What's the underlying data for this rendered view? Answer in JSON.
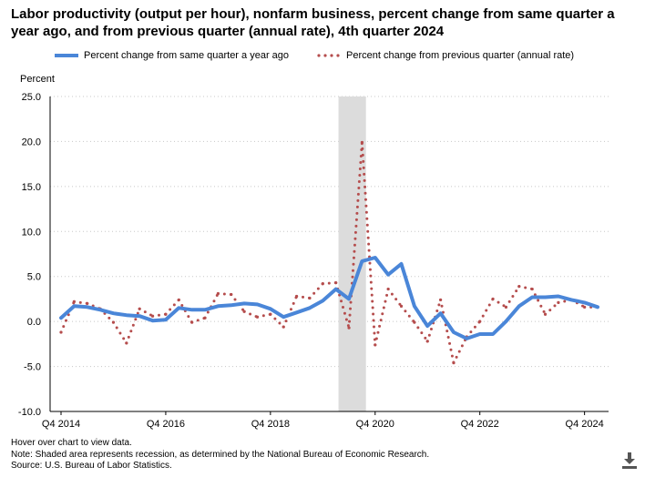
{
  "title": "Labor productivity (output per hour), nonfarm business, percent change from same quarter a year ago, and from previous quarter (annual rate), 4th quarter 2024",
  "legend": {
    "series1": "Percent change from same quarter a year ago",
    "series2": "Percent change from previous quarter (annual rate)"
  },
  "footnotes": {
    "hover": "Hover over chart to view data.",
    "note": "Note: Shaded area represents recession, as determined by the National Bureau of Economic Research.",
    "source": "Source: U.S. Bureau of Labor Statistics."
  },
  "download_icon": "download-icon",
  "chart_data": {
    "type": "line",
    "title": "Labor productivity (output per hour), nonfarm business",
    "ylabel": "Percent",
    "xlabel": "",
    "ylim": [
      -10,
      25
    ],
    "yticks": [
      25,
      20,
      15,
      10,
      5,
      0,
      -5,
      -10
    ],
    "ytick_labels": [
      "25.0",
      "20.0",
      "15.0",
      "10.0",
      "5.0",
      "0.0",
      "-5.0",
      "-10.0"
    ],
    "grid": true,
    "x_start_quarter_index": 0,
    "x_tick_labels": [
      {
        "label": "Q4 2014",
        "index": 0
      },
      {
        "label": "Q4 2016",
        "index": 8
      },
      {
        "label": "Q4 2018",
        "index": 16
      },
      {
        "label": "Q4 2020",
        "index": 24
      },
      {
        "label": "Q4 2022",
        "index": 32
      },
      {
        "label": "Q4 2024",
        "index": 40
      }
    ],
    "recession": {
      "start_index": 21.2,
      "end_index": 23.3
    },
    "series": [
      {
        "name": "Percent change from same quarter a year ago",
        "style": "solid",
        "color": "#4a86d8",
        "values": [
          0.4,
          1.7,
          1.6,
          1.3,
          0.9,
          0.7,
          0.6,
          0.1,
          0.2,
          1.5,
          1.3,
          1.3,
          1.7,
          1.8,
          2.0,
          1.9,
          1.4,
          0.5,
          1.0,
          1.5,
          2.3,
          3.6,
          2.5,
          6.7,
          7.1,
          5.2,
          6.4,
          1.7,
          -0.5,
          0.9,
          -1.2,
          -1.9,
          -1.4,
          -1.4,
          0.0,
          1.7,
          2.7,
          2.7,
          2.8,
          2.4,
          2.1,
          1.6
        ]
      },
      {
        "name": "Percent change from previous quarter (annual rate)",
        "style": "dotted",
        "color": "#b54d4d",
        "values": [
          -1.2,
          2.2,
          2.0,
          1.4,
          -0.1,
          -2.4,
          1.4,
          0.6,
          0.8,
          2.4,
          -0.1,
          0.4,
          3.1,
          3.0,
          1.1,
          0.5,
          0.8,
          -0.6,
          2.8,
          2.6,
          4.2,
          4.3,
          -0.7,
          19.9,
          -2.6,
          3.6,
          1.7,
          -0.1,
          -2.2,
          2.4,
          -4.6,
          -1.7,
          0.0,
          2.5,
          1.6,
          3.9,
          3.6,
          0.8,
          2.1,
          2.4,
          1.6,
          1.6
        ]
      }
    ]
  }
}
